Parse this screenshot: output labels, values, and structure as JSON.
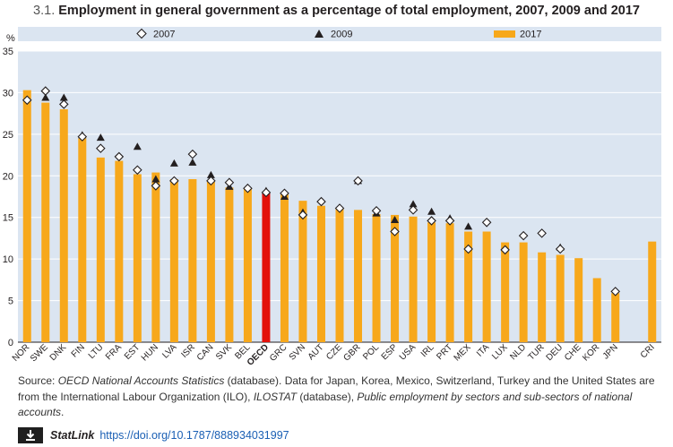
{
  "title": {
    "number": "3.1.",
    "text": "Employment in general government as a percentage of total employment, 2007, 2009 and 2017"
  },
  "source": {
    "prefix": "Source: ",
    "db1": "OECD National Accounts Statistics",
    "mid": " (database). Data for Japan, Korea, Mexico, Switzerland, Turkey and the United States are from the International Labour Organization (ILO), ",
    "db2": "ILOSTAT",
    "mid2": " (database), ",
    "db3": "Public employment by sectors and sub-sectors of national accounts",
    "end": "."
  },
  "statlink": {
    "label": "StatLink",
    "url": "https://doi.org/10.1787/888934031997",
    "icon": "download-icon"
  },
  "colors": {
    "bar": "#f7a81b",
    "oecd_bar": "#e3120b",
    "plot_bg": "#dbe5f1",
    "legend_bg": "#dbe5f1"
  },
  "chart_data": {
    "type": "bar",
    "ylabel": "%",
    "ylim": [
      0,
      35
    ],
    "yticks": [
      0,
      5,
      10,
      15,
      20,
      25,
      30,
      35
    ],
    "grid": true,
    "legend_position": "top",
    "highlight_category": "OECD",
    "categories": [
      "NOR",
      "SWE",
      "DNK",
      "FIN",
      "LTU",
      "FRA",
      "EST",
      "HUN",
      "LVA",
      "ISR",
      "CAN",
      "SVK",
      "BEL",
      "OECD",
      "GRC",
      "SVN",
      "AUT",
      "CZE",
      "GBR",
      "POL",
      "ESP",
      "USA",
      "IRL",
      "PRT",
      "MEX",
      "ITA",
      "LUX",
      "NLD",
      "TUR",
      "DEU",
      "CHE",
      "KOR",
      "JPN",
      "",
      "CRI"
    ],
    "series": [
      {
        "name": "2007",
        "marker": "diamond",
        "values": [
          29.1,
          30.2,
          28.6,
          24.7,
          23.3,
          22.3,
          20.7,
          18.8,
          19.4,
          22.6,
          19.4,
          19.2,
          18.5,
          18.0,
          17.9,
          15.3,
          16.9,
          16.1,
          19.4,
          15.8,
          13.3,
          15.9,
          14.6,
          14.6,
          11.2,
          14.4,
          11.1,
          12.8,
          13.1,
          11.2,
          null,
          null,
          6.1,
          null,
          null
        ]
      },
      {
        "name": "2009",
        "marker": "triangle",
        "values": [
          null,
          29.4,
          29.4,
          24.9,
          24.6,
          null,
          23.5,
          19.6,
          21.5,
          21.6,
          20.1,
          18.7,
          null,
          18.2,
          17.5,
          15.6,
          null,
          null,
          19.4,
          15.5,
          14.7,
          16.6,
          15.7,
          14.9,
          13.9,
          null,
          null,
          null,
          null,
          11.4,
          null,
          null,
          null,
          null,
          null
        ]
      },
      {
        "name": "2017",
        "marker": "bar",
        "values": [
          30.3,
          28.8,
          28.0,
          24.5,
          22.2,
          21.8,
          20.2,
          20.4,
          19.6,
          19.6,
          19.3,
          18.6,
          18.4,
          17.9,
          17.8,
          17.0,
          16.4,
          16.0,
          15.9,
          15.4,
          15.3,
          15.1,
          14.4,
          14.3,
          13.3,
          13.3,
          12.0,
          12.0,
          10.8,
          10.5,
          10.1,
          7.7,
          5.9,
          null,
          12.1
        ]
      }
    ]
  }
}
